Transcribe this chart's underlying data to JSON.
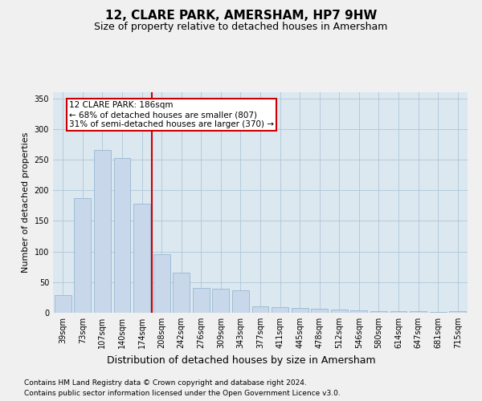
{
  "title": "12, CLARE PARK, AMERSHAM, HP7 9HW",
  "subtitle": "Size of property relative to detached houses in Amersham",
  "xlabel": "Distribution of detached houses by size in Amersham",
  "ylabel": "Number of detached properties",
  "categories": [
    "39sqm",
    "73sqm",
    "107sqm",
    "140sqm",
    "174sqm",
    "208sqm",
    "242sqm",
    "276sqm",
    "309sqm",
    "343sqm",
    "377sqm",
    "411sqm",
    "445sqm",
    "478sqm",
    "512sqm",
    "546sqm",
    "580sqm",
    "614sqm",
    "647sqm",
    "681sqm",
    "715sqm"
  ],
  "values": [
    29,
    187,
    266,
    252,
    178,
    95,
    65,
    40,
    39,
    37,
    11,
    9,
    8,
    6,
    5,
    4,
    3,
    3,
    2,
    1,
    2
  ],
  "bar_color": "#c8d8ea",
  "bar_edge_color": "#8ab0cc",
  "marker_line_color": "#cc0000",
  "marker_box_facecolor": "#ffffff",
  "marker_box_edgecolor": "#cc0000",
  "marker_label": "12 CLARE PARK: 186sqm",
  "marker_pct_smaller": "← 68% of detached houses are smaller (807)",
  "marker_pct_larger": "31% of semi-detached houses are larger (370) →",
  "ylim": [
    0,
    360
  ],
  "yticks": [
    0,
    50,
    100,
    150,
    200,
    250,
    300,
    350
  ],
  "grid_color": "#aec6d8",
  "plot_bg_color": "#dce8f0",
  "fig_bg_color": "#f0f0f0",
  "title_fontsize": 11,
  "subtitle_fontsize": 9,
  "xlabel_fontsize": 9,
  "ylabel_fontsize": 8,
  "tick_fontsize": 7,
  "annotation_fontsize": 7.5,
  "footer_fontsize": 6.5
}
